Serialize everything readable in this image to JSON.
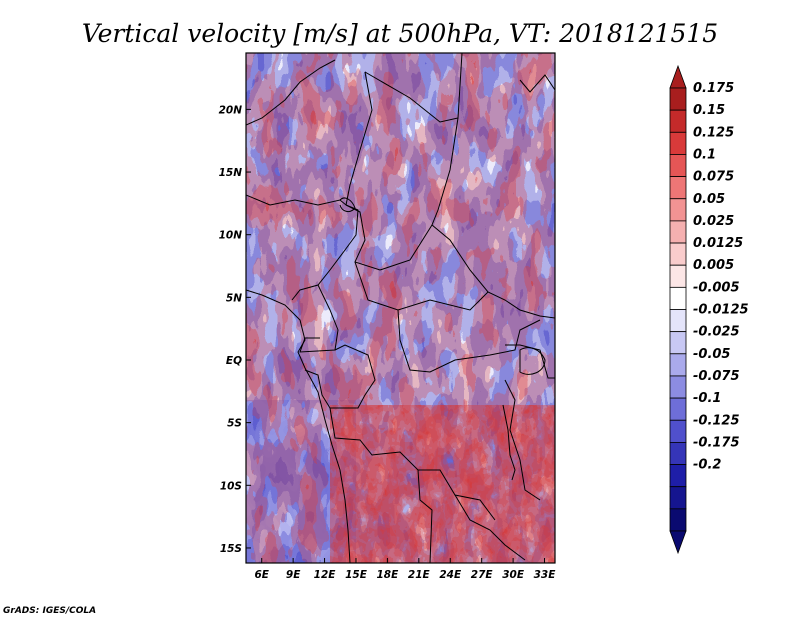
{
  "title": "Vertical velocity [m/s] at 500hPa, VT: 2018121515",
  "credit": "GrADS: IGES/COLA",
  "map": {
    "lon_range": [
      4.5,
      34
    ],
    "lat_range": [
      -16.2,
      24.5
    ],
    "lon_ticks": [
      "6E",
      "9E",
      "12E",
      "15E",
      "18E",
      "21E",
      "24E",
      "27E",
      "30E",
      "33E"
    ],
    "lat_ticks": [
      "20N",
      "15N",
      "10N",
      "5N",
      "EQ",
      "5S",
      "10S",
      "15S"
    ]
  },
  "colorbar": {
    "extend": "both",
    "labels": [
      "0.175",
      "0.15",
      "0.125",
      "0.1",
      "0.075",
      "0.05",
      "0.025",
      "0.0125",
      "0.005",
      "-0.005",
      "-0.0125",
      "-0.025",
      "-0.05",
      "-0.075",
      "-0.1",
      "-0.125",
      "-0.175",
      "-0.2"
    ],
    "colors": [
      "#a81e1e",
      "#c42a2a",
      "#d93a3a",
      "#e55656",
      "#ee7676",
      "#f29393",
      "#f5b0b0",
      "#f9cccc",
      "#fce6e6",
      "#ffffff",
      "#e4e4fa",
      "#c8c8f4",
      "#aaaaec",
      "#8c8ce2",
      "#6e6ed8",
      "#5050cc",
      "#3535b8",
      "#1e1ea8",
      "#15158f",
      "#0a0a70"
    ],
    "tip_top_color": "#a81e1e",
    "tip_bottom_color": "#0a0a70"
  }
}
